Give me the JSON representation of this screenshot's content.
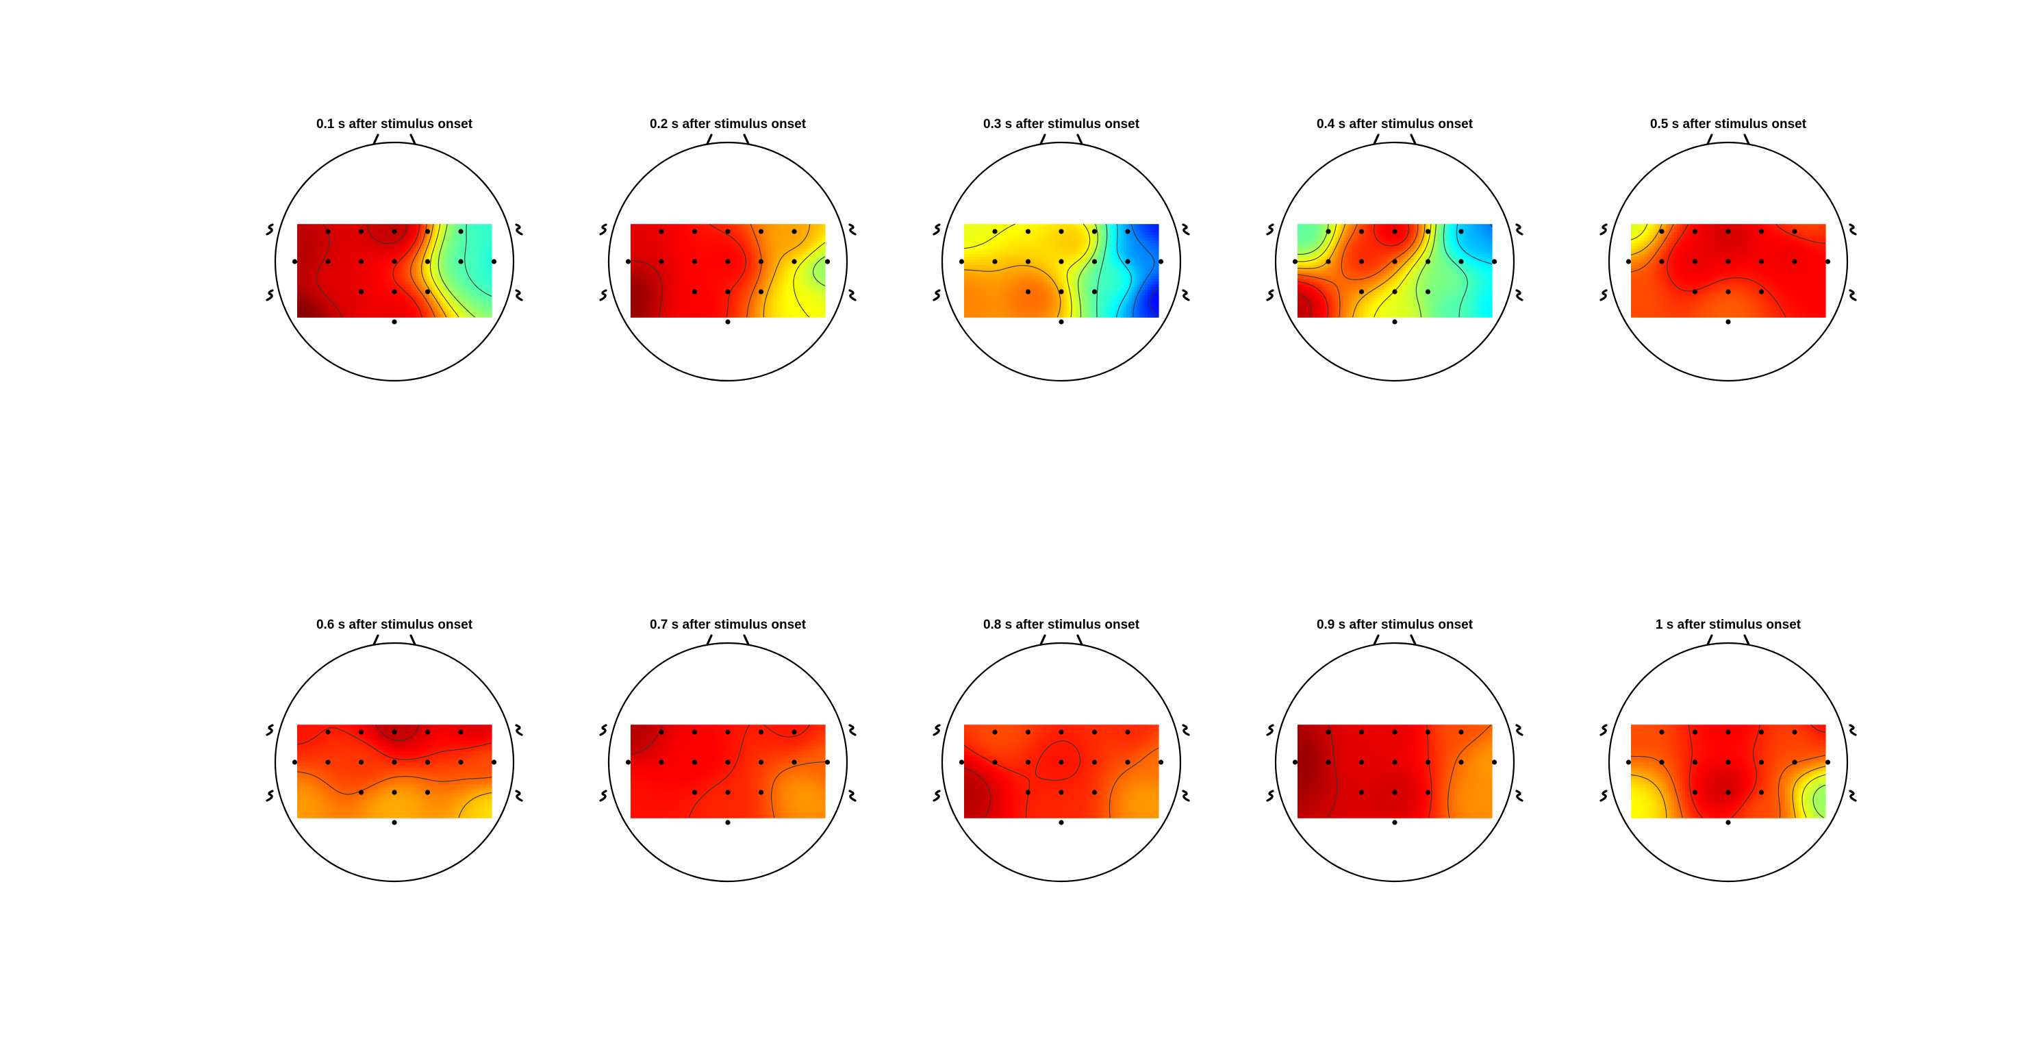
{
  "chart_data": {
    "type": "heatmap",
    "colormap": "jet",
    "contour_lines": true,
    "electrode_grid": {
      "rows": [
        {
          "y": 1,
          "x": [
            -2,
            -1,
            0,
            1,
            2
          ]
        },
        {
          "y": 0,
          "x": [
            -3,
            -2,
            -1,
            0,
            1,
            2,
            3
          ]
        },
        {
          "y": -1,
          "x": [
            -1,
            0,
            1
          ]
        },
        {
          "y": -2,
          "x": [
            0
          ]
        }
      ]
    },
    "panels": [
      {
        "title": "0.1 s after stimulus onset",
        "field": [
          [
            -3,
            0.25,
            0.95
          ],
          [
            -3,
            -1.8,
            1.0
          ],
          [
            -1.7,
            -0.6,
            0.9
          ],
          [
            0,
            1.1,
            0.95
          ],
          [
            0,
            -1.8,
            0.9
          ],
          [
            2.3,
            0,
            0.45
          ],
          [
            3,
            0,
            0.38
          ],
          [
            2.8,
            1.2,
            0.42
          ]
        ]
      },
      {
        "title": "0.2 s after stimulus onset",
        "field": [
          [
            -3,
            -1.2,
            0.98
          ],
          [
            -3,
            1,
            0.9
          ],
          [
            0,
            0,
            0.88
          ],
          [
            -1,
            -1.5,
            0.88
          ],
          [
            2,
            0.8,
            0.72
          ],
          [
            2.3,
            -1.4,
            0.62
          ],
          [
            3,
            -0.3,
            0.5
          ]
        ]
      },
      {
        "title": "0.3 s after stimulus onset",
        "field": [
          [
            -3,
            1.2,
            0.6
          ],
          [
            -3,
            -1.3,
            0.75
          ],
          [
            -0.8,
            -1.2,
            0.78
          ],
          [
            0.4,
            0.6,
            0.7
          ],
          [
            1.6,
            -0.5,
            0.45
          ],
          [
            2.3,
            0.2,
            0.25
          ],
          [
            3,
            -1.2,
            0.1
          ],
          [
            3,
            1.2,
            0.13
          ]
        ]
      },
      {
        "title": "0.4 s after stimulus onset",
        "field": [
          [
            -3,
            -1.5,
            0.95
          ],
          [
            -2.7,
            1,
            0.45
          ],
          [
            -0.9,
            0.2,
            0.85
          ],
          [
            0,
            1,
            0.92
          ],
          [
            0.2,
            -1.8,
            0.6
          ],
          [
            1.5,
            -0.6,
            0.5
          ],
          [
            1.7,
            -1.6,
            0.45
          ],
          [
            2.4,
            0.7,
            0.3
          ],
          [
            3,
            1.2,
            0.22
          ],
          [
            3,
            -1.5,
            0.35
          ]
        ]
      },
      {
        "title": "0.5 s after stimulus onset",
        "field": [
          [
            -3,
            1.3,
            0.58
          ],
          [
            -3,
            -1.2,
            0.8
          ],
          [
            -1,
            0,
            0.9
          ],
          [
            0,
            0.8,
            0.92
          ],
          [
            0,
            -1.6,
            0.78
          ],
          [
            1.9,
            0.3,
            0.9
          ],
          [
            2.8,
            -0.7,
            0.88
          ],
          [
            2.3,
            1.3,
            0.8
          ]
        ]
      },
      {
        "title": "0.6 s after stimulus onset",
        "field": [
          [
            -3,
            1.2,
            0.86
          ],
          [
            0,
            1.2,
            0.95
          ],
          [
            2.5,
            1.2,
            0.92
          ],
          [
            -3,
            -1.5,
            0.72
          ],
          [
            0,
            -1.5,
            0.7
          ],
          [
            3,
            -1.6,
            0.65
          ],
          [
            2.8,
            0,
            0.8
          ],
          [
            -1,
            0,
            0.82
          ]
        ]
      },
      {
        "title": "0.7 s after stimulus onset",
        "field": [
          [
            -3,
            1.2,
            0.95
          ],
          [
            -3,
            -1.3,
            0.86
          ],
          [
            -1,
            0.1,
            0.88
          ],
          [
            0,
            -1.4,
            0.84
          ],
          [
            2,
            1.2,
            0.86
          ],
          [
            2.4,
            -1.1,
            0.72
          ],
          [
            3,
            -0.2,
            0.78
          ]
        ]
      },
      {
        "title": "0.8 s after stimulus onset",
        "field": [
          [
            -3,
            -1,
            0.95
          ],
          [
            -1.8,
            1,
            0.8
          ],
          [
            0,
            0,
            0.86
          ],
          [
            0,
            -1.5,
            0.84
          ],
          [
            2.2,
            1,
            0.84
          ],
          [
            2.6,
            -1.3,
            0.72
          ],
          [
            3,
            0,
            0.76
          ]
        ]
      },
      {
        "title": "0.9 s after stimulus onset",
        "field": [
          [
            -3,
            0,
            0.98
          ],
          [
            -1,
            0.2,
            0.9
          ],
          [
            0,
            -1,
            0.92
          ],
          [
            0,
            1,
            0.9
          ],
          [
            2,
            1.2,
            0.8
          ],
          [
            2.6,
            -1.2,
            0.73
          ],
          [
            3,
            0,
            0.72
          ]
        ]
      },
      {
        "title": "1 s after stimulus onset",
        "field": [
          [
            -3,
            1,
            0.8
          ],
          [
            -3,
            -1.5,
            0.62
          ],
          [
            0,
            1.2,
            0.88
          ],
          [
            0,
            -0.9,
            0.93
          ],
          [
            1,
            -1.6,
            0.8
          ],
          [
            2.2,
            0.8,
            0.8
          ],
          [
            3,
            -1.2,
            0.5
          ],
          [
            2.7,
            1.3,
            0.88
          ]
        ]
      }
    ]
  }
}
